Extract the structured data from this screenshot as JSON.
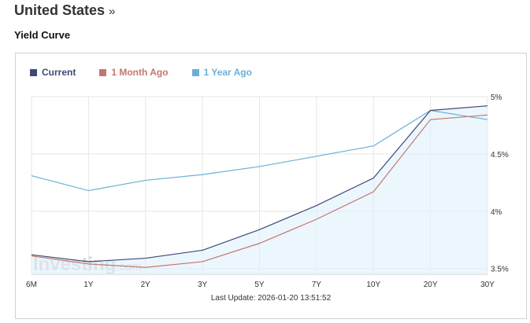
{
  "header": {
    "title": "United States",
    "title_suffix": "»",
    "subtitle": "Yield Curve"
  },
  "last_update": "Last Update: 2026-01-20 13:51:52",
  "watermark": {
    "brand": "Investing",
    "suffix": ".com"
  },
  "chart_data": {
    "type": "line",
    "categories": [
      "6M",
      "1Y",
      "2Y",
      "3Y",
      "5Y",
      "7Y",
      "10Y",
      "20Y",
      "30Y"
    ],
    "y_ticks": [
      "3.5%",
      "4%",
      "4.5%",
      "5%"
    ],
    "y_tick_values": [
      3.5,
      4.0,
      4.5,
      5.0
    ],
    "ylim": [
      3.45,
      5.0
    ],
    "grid": true,
    "y_axis_side": "right",
    "legend_position": "top-left",
    "series": [
      {
        "name": "Current",
        "color": "#3d4a74",
        "fill": true,
        "values": [
          3.62,
          3.56,
          3.59,
          3.66,
          3.84,
          4.05,
          4.29,
          4.88,
          4.92
        ]
      },
      {
        "name": "1 Month Ago",
        "color": "#c4776e",
        "fill": false,
        "values": [
          3.61,
          3.54,
          3.51,
          3.56,
          3.72,
          3.93,
          4.17,
          4.8,
          4.84
        ]
      },
      {
        "name": "1 Year Ago",
        "color": "#6ab0d6",
        "fill": false,
        "values": [
          4.31,
          4.18,
          4.27,
          4.32,
          4.39,
          4.48,
          4.57,
          4.88,
          4.8
        ]
      }
    ]
  }
}
